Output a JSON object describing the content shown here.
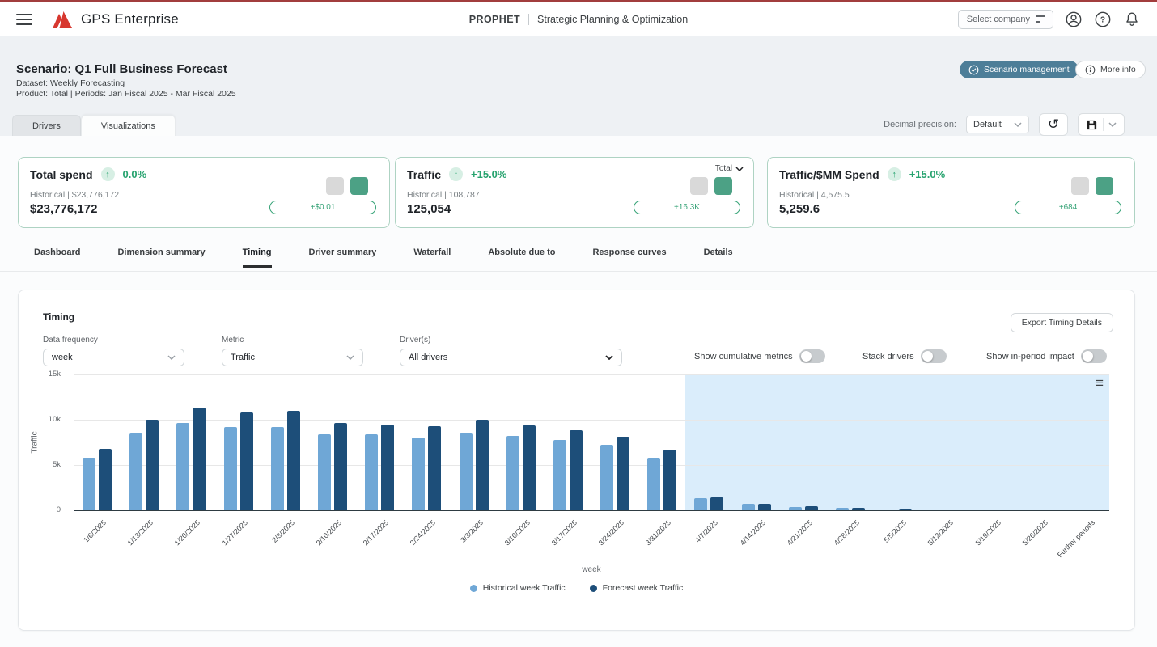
{
  "icons": {
    "reset_glyph": "↺",
    "chart_menu_glyph": "≡"
  },
  "colors": {
    "accent_red": "#a23d3d",
    "logo_red": "#d7372f",
    "brand_slate": "#4d7e98",
    "positive_green": "#27a36f",
    "chip_green": "#4ca185",
    "chip_gray": "#d9d9d9",
    "bar_historical": "#6fa7d6",
    "bar_forecast": "#1d4e79",
    "forecast_region_bg": "#daedfb"
  },
  "header": {
    "app_name": "GPS Enterprise",
    "center_title": "PROPHET",
    "center_subtitle": "Strategic Planning & Optimization",
    "select_company": "Select company"
  },
  "scenario": {
    "title": "Scenario: Q1 Full Business Forecast",
    "dataset_line": "Dataset: Weekly Forecasting",
    "detail_line": "Product: Total  |  Periods: Jan Fiscal 2025 - Mar Fiscal 2025",
    "management_button": "Scenario management",
    "more_info_button": "More info"
  },
  "main_tabs": {
    "items": [
      "Drivers",
      "Visualizations"
    ],
    "active_index": 1
  },
  "toolbar": {
    "decimal_precision_label": "Decimal precision:",
    "decimal_precision_value": "Default"
  },
  "kpi_cards": [
    {
      "title": "Total spend",
      "change": "0.0%",
      "historical": "Historical | $23,776,172",
      "value": "$23,776,172",
      "delta_badge": "+$0.01"
    },
    {
      "title": "Traffic",
      "change": "+15.0%",
      "dimension_selector": "Total",
      "historical": "Historical | 108,787",
      "value": "125,054",
      "delta_badge": "+16.3K"
    },
    {
      "title": "Traffic/$MM Spend",
      "change": "+15.0%",
      "historical": "Historical | 4,575.5",
      "value": "5,259.6",
      "delta_badge": "+684"
    }
  ],
  "sub_tabs": {
    "items": [
      "Dashboard",
      "Dimension summary",
      "Timing",
      "Driver summary",
      "Waterfall",
      "Absolute due to",
      "Response curves",
      "Details"
    ],
    "active_index": 2
  },
  "timing_panel": {
    "title": "Timing",
    "export_button": "Export Timing Details",
    "filters": [
      {
        "label": "Data frequency",
        "value": "week"
      },
      {
        "label": "Metric",
        "value": "Traffic"
      },
      {
        "label": "Driver(s)",
        "value": "All drivers"
      }
    ],
    "toggles": [
      {
        "label": "Show cumulative metrics",
        "state": "off"
      },
      {
        "label": "Stack drivers",
        "state": "off"
      },
      {
        "label": "Show in-period impact",
        "state": "off"
      }
    ]
  },
  "chart_data": {
    "type": "bar",
    "title": "Timing",
    "xlabel": "week",
    "ylabel": "Traffic",
    "ylim": [
      0,
      15000
    ],
    "grid": true,
    "legend_position": "bottom",
    "yticks": [
      {
        "label": "0",
        "value": 0
      },
      {
        "label": "5k",
        "value": 5000
      },
      {
        "label": "10k",
        "value": 10000
      },
      {
        "label": "15k",
        "value": 15000
      }
    ],
    "categories": [
      "1/6/2025",
      "1/13/2025",
      "1/20/2025",
      "1/27/2025",
      "2/3/2025",
      "2/10/2025",
      "2/17/2025",
      "2/24/2025",
      "3/3/2025",
      "3/10/2025",
      "3/17/2025",
      "3/24/2025",
      "3/31/2025",
      "4/7/2025",
      "4/14/2025",
      "4/21/2025",
      "4/28/2025",
      "5/5/2025",
      "5/12/2025",
      "5/19/2025",
      "5/26/2025",
      "Further periods"
    ],
    "series": [
      {
        "name": "Historical week Traffic",
        "color": "#6fa7d6",
        "values": [
          5800,
          8500,
          9600,
          9200,
          9200,
          8400,
          8400,
          8000,
          8500,
          8200,
          7800,
          7200,
          5800,
          1300,
          700,
          400,
          250,
          130,
          60,
          30,
          20,
          10
        ]
      },
      {
        "name": "Forecast week Traffic",
        "color": "#1d4e79",
        "values": [
          6800,
          10000,
          11300,
          10800,
          11000,
          9600,
          9500,
          9300,
          10000,
          9400,
          8800,
          8100,
          6700,
          1400,
          750,
          450,
          300,
          160,
          80,
          40,
          30,
          15
        ]
      }
    ],
    "forecast_region_start_index": 13
  }
}
